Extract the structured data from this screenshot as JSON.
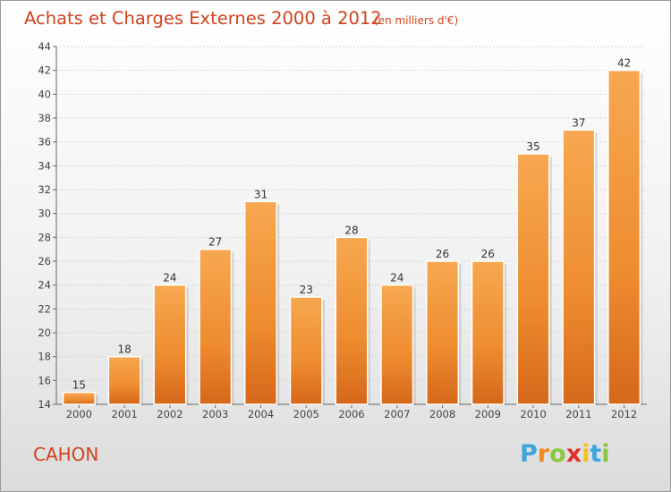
{
  "chart_data": {
    "type": "bar",
    "title": "Achats et Charges Externes 2000 à 2012",
    "subtitle": "(en milliers d'€)",
    "categories": [
      "2000",
      "2001",
      "2002",
      "2003",
      "2004",
      "2005",
      "2006",
      "2007",
      "2008",
      "2009",
      "2010",
      "2011",
      "2012"
    ],
    "values": [
      15,
      18,
      24,
      27,
      31,
      23,
      28,
      24,
      26,
      26,
      35,
      37,
      42
    ],
    "ylim": [
      14,
      44
    ],
    "yticks": [
      14,
      16,
      18,
      20,
      22,
      24,
      26,
      28,
      30,
      32,
      34,
      36,
      38,
      40,
      42,
      44
    ],
    "grid": true,
    "bar_color": "#f0943a",
    "bar_color_light": "#f7b063",
    "bar_color_dark": "#d9701f"
  },
  "commune": "CAHON",
  "logo": {
    "letters": [
      "P",
      "r",
      "o",
      "x",
      "i",
      "t",
      "i"
    ],
    "colors": [
      "#3aa7de",
      "#f28a1d",
      "#8cc63f",
      "#e22f2f",
      "#f2c21b",
      "#3aa7de",
      "#8cc63f"
    ]
  }
}
